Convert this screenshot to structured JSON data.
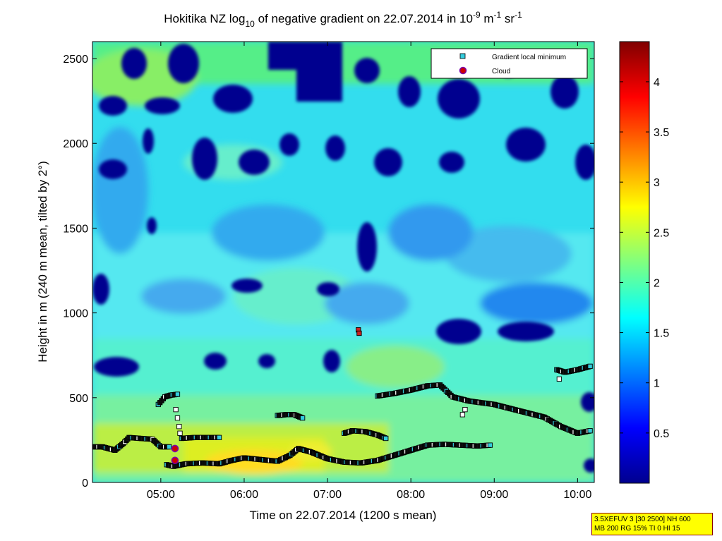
{
  "chart_data": {
    "type": "heatmap",
    "title_parts": {
      "pre": "Hokitika NZ log",
      "sub": "10",
      "mid": " of negative gradient on 22.07.2014 in 10",
      "sup1": "-9",
      "mid2": " m",
      "sup2": "-1",
      "mid3": " sr",
      "sup3": "-1"
    },
    "xlabel": "Time on 22.07.2014 (1200 s mean)",
    "ylabel": "Height in m (240 m mean, tilted by 2°)",
    "xlim_hours": [
      4.18,
      10.2
    ],
    "ylim": [
      0,
      2600
    ],
    "x_ticks": [
      {
        "h": 5,
        "label": "05:00"
      },
      {
        "h": 6,
        "label": "06:00"
      },
      {
        "h": 7,
        "label": "07:00"
      },
      {
        "h": 8,
        "label": "08:00"
      },
      {
        "h": 9,
        "label": "09:00"
      },
      {
        "h": 10,
        "label": "10:00"
      }
    ],
    "y_ticks": [
      {
        "v": 0,
        "label": "0"
      },
      {
        "v": 500,
        "label": "500"
      },
      {
        "v": 1000,
        "label": "1000"
      },
      {
        "v": 1500,
        "label": "1500"
      },
      {
        "v": 2000,
        "label": "2000"
      },
      {
        "v": 2500,
        "label": "2500"
      }
    ],
    "colorbar": {
      "range": [
        0,
        4.4
      ],
      "ticks": [
        {
          "v": 0.5,
          "label": "0.5"
        },
        {
          "v": 1,
          "label": "1"
        },
        {
          "v": 1.5,
          "label": "1.5"
        },
        {
          "v": 2,
          "label": "2"
        },
        {
          "v": 2.5,
          "label": "2.5"
        },
        {
          "v": 3,
          "label": "3"
        },
        {
          "v": 3.5,
          "label": "3.5"
        },
        {
          "v": 4,
          "label": "4"
        }
      ]
    },
    "legend": {
      "position": "top-right",
      "entries": [
        {
          "label": "Gradient local minimum",
          "marker": "square",
          "color": "#33ccdd"
        },
        {
          "label": "Cloud",
          "marker": "circle",
          "color": "#cc0000"
        }
      ]
    },
    "gradient_minimum_series": [
      {
        "name": "layer-low-a",
        "points": [
          [
            4.18,
            210
          ],
          [
            4.3,
            210
          ],
          [
            4.45,
            190
          ],
          [
            4.55,
            230
          ],
          [
            4.62,
            265
          ],
          [
            4.75,
            260
          ],
          [
            4.9,
            255
          ],
          [
            5.0,
            210
          ],
          [
            5.1,
            210
          ]
        ]
      },
      {
        "name": "layer-low-b",
        "points": [
          [
            5.07,
            105
          ],
          [
            5.15,
            95
          ],
          [
            5.3,
            110
          ],
          [
            5.5,
            115
          ],
          [
            5.7,
            110
          ],
          [
            5.85,
            130
          ],
          [
            6.0,
            145
          ],
          [
            6.2,
            135
          ],
          [
            6.4,
            125
          ],
          [
            6.55,
            160
          ],
          [
            6.65,
            200
          ],
          [
            6.8,
            180
          ],
          [
            7.0,
            140
          ],
          [
            7.2,
            120
          ],
          [
            7.4,
            115
          ],
          [
            7.6,
            130
          ],
          [
            7.8,
            160
          ],
          [
            8.0,
            190
          ],
          [
            8.2,
            220
          ],
          [
            8.4,
            225
          ],
          [
            8.6,
            220
          ],
          [
            8.8,
            215
          ],
          [
            8.95,
            220
          ]
        ]
      },
      {
        "name": "layer-mid-a",
        "points": [
          [
            5.25,
            260
          ],
          [
            5.4,
            265
          ],
          [
            5.55,
            265
          ],
          [
            5.7,
            265
          ]
        ]
      },
      {
        "name": "layer-mid-b",
        "points": [
          [
            4.97,
            460
          ],
          [
            5.05,
            505
          ],
          [
            5.12,
            515
          ],
          [
            5.2,
            520
          ]
        ]
      },
      {
        "name": "layer-mid-c",
        "points": [
          [
            6.4,
            395
          ],
          [
            6.5,
            400
          ],
          [
            6.6,
            400
          ],
          [
            6.7,
            380
          ]
        ]
      },
      {
        "name": "layer-mid-d",
        "points": [
          [
            7.2,
            290
          ],
          [
            7.3,
            305
          ],
          [
            7.45,
            300
          ],
          [
            7.6,
            280
          ],
          [
            7.7,
            260
          ]
        ]
      },
      {
        "name": "layer-upper",
        "points": [
          [
            7.6,
            510
          ],
          [
            7.8,
            525
          ],
          [
            8.0,
            545
          ],
          [
            8.2,
            570
          ],
          [
            8.35,
            575
          ],
          [
            8.5,
            505
          ],
          [
            8.7,
            480
          ],
          [
            9.0,
            460
          ],
          [
            9.2,
            435
          ],
          [
            9.4,
            410
          ],
          [
            9.6,
            385
          ],
          [
            9.8,
            330
          ],
          [
            10.0,
            290
          ],
          [
            10.15,
            305
          ]
        ]
      },
      {
        "name": "layer-top-right",
        "points": [
          [
            9.75,
            665
          ],
          [
            9.85,
            650
          ],
          [
            10.0,
            665
          ],
          [
            10.15,
            685
          ]
        ]
      },
      {
        "name": "scatter",
        "points": [
          [
            5.18,
            430
          ],
          [
            5.2,
            380
          ],
          [
            5.22,
            330
          ],
          [
            5.23,
            290
          ],
          [
            8.62,
            400
          ],
          [
            8.65,
            430
          ],
          [
            9.78,
            610
          ],
          [
            7.37,
            900
          ],
          [
            7.38,
            880
          ]
        ]
      }
    ],
    "clouds": [
      [
        5.17,
        200
      ],
      [
        5.17,
        130
      ]
    ]
  },
  "info_box": {
    "line1": "3.5XEFUV 3 [30 2500] NH 600",
    "line2": "MB 200 RG 15% TI 0 HI 15"
  }
}
